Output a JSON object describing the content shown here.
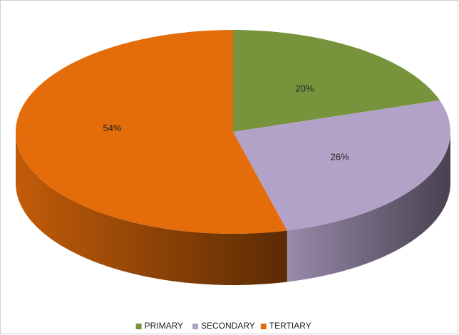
{
  "chart_data": {
    "type": "pie",
    "categories": [
      "PRIMARY",
      "SECONDARY",
      "TERTIARY"
    ],
    "values": [
      20,
      26,
      54
    ],
    "value_labels": [
      "20%",
      "26%",
      "54%"
    ],
    "colors": [
      "#77933c",
      "#b3a2c7",
      "#e46c0a"
    ],
    "legend": "bottom"
  }
}
